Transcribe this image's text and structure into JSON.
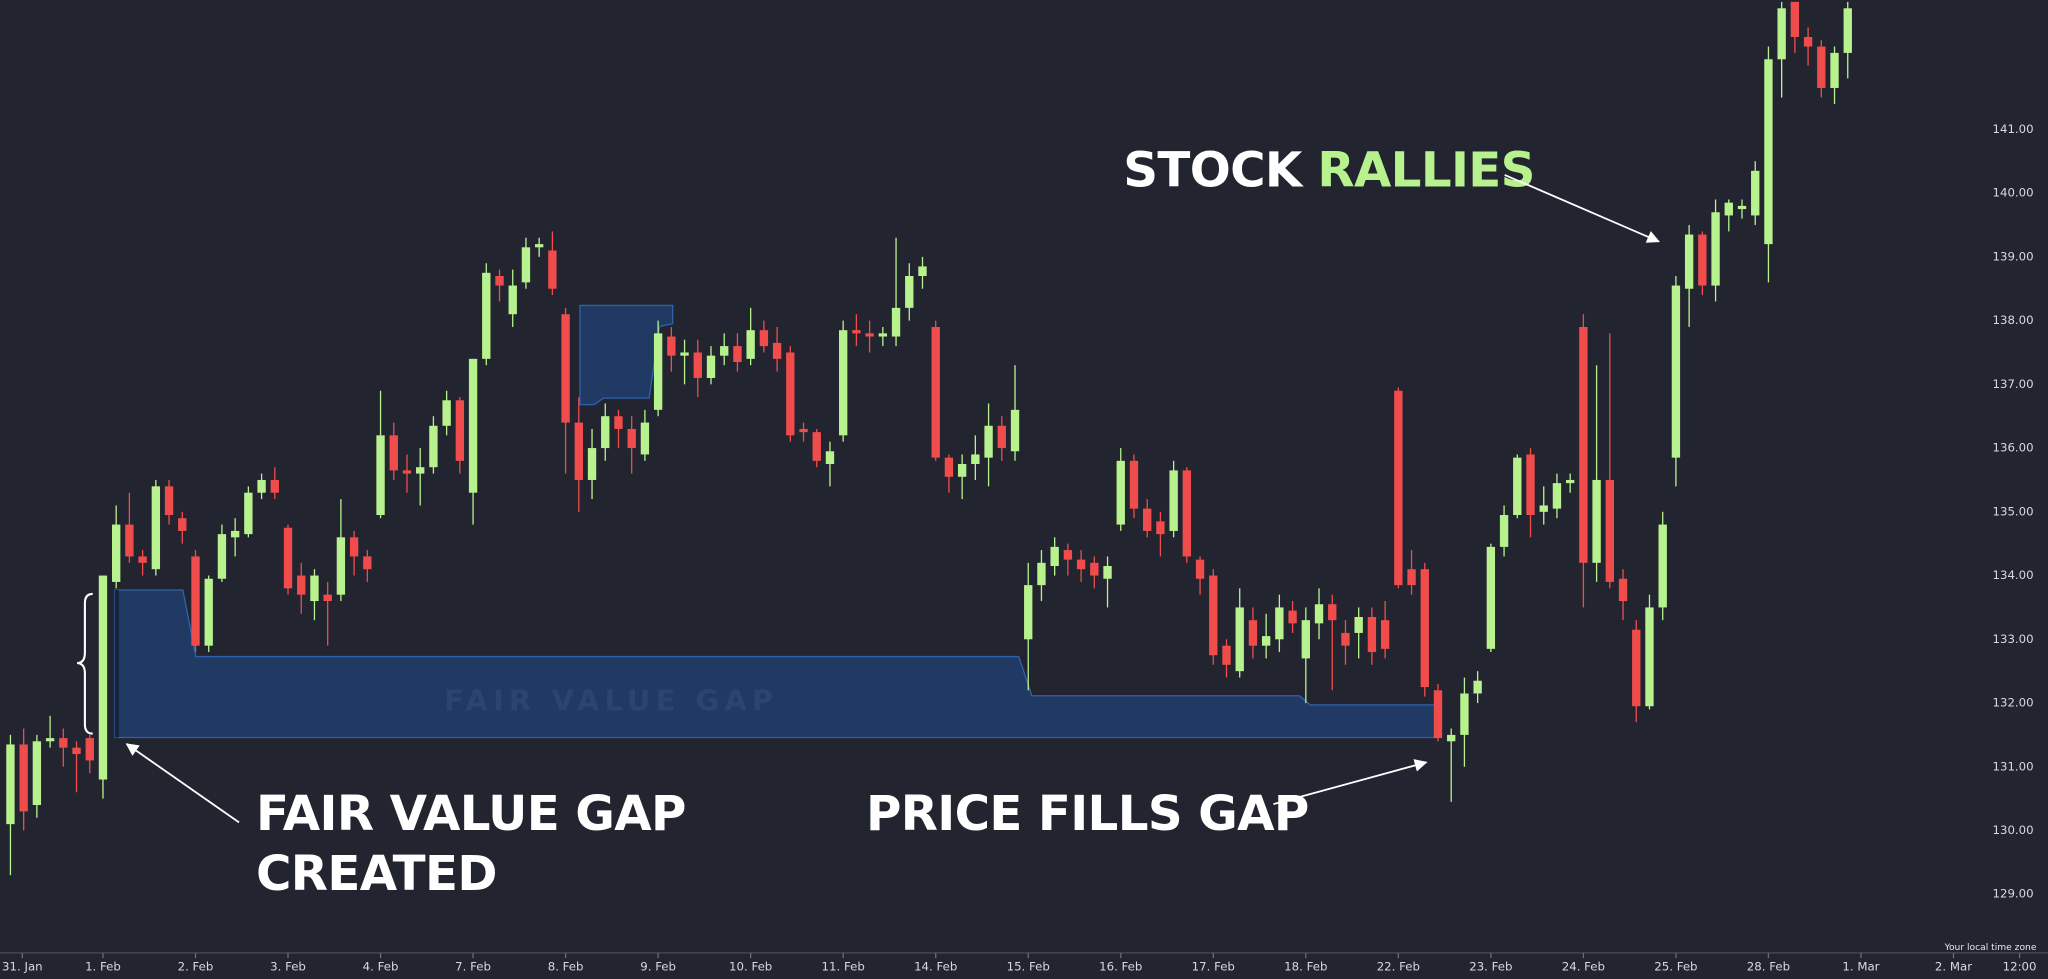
{
  "chart_data": {
    "type": "candlestick",
    "up_color": "#b8f28e",
    "down_color": "#f04c4c",
    "ylim": [
      128.08,
      143.03
    ],
    "yticks": [
      {
        "value": 129,
        "label": "129.00"
      },
      {
        "value": 130,
        "label": "130.00"
      },
      {
        "value": 131,
        "label": "131.00"
      },
      {
        "value": 132,
        "label": "132.00"
      },
      {
        "value": 133,
        "label": "133.00"
      },
      {
        "value": 134,
        "label": "134.00"
      },
      {
        "value": 135,
        "label": "135.00"
      },
      {
        "value": 136,
        "label": "136.00"
      },
      {
        "value": 137,
        "label": "137.00"
      },
      {
        "value": 138,
        "label": "138.00"
      },
      {
        "value": 139,
        "label": "139.00"
      },
      {
        "value": 140,
        "label": "140.00"
      },
      {
        "value": 141,
        "label": "141.00"
      }
    ],
    "xlim": [
      -0.79,
      154.15
    ],
    "xticks": [
      {
        "value": 0.9,
        "label": "31. Jan"
      },
      {
        "value": 7,
        "label": "1. Feb"
      },
      {
        "value": 14,
        "label": "2. Feb"
      },
      {
        "value": 21,
        "label": "3. Feb"
      },
      {
        "value": 28,
        "label": "4. Feb"
      },
      {
        "value": 35,
        "label": "7. Feb"
      },
      {
        "value": 42,
        "label": "8. Feb"
      },
      {
        "value": 49,
        "label": "9. Feb"
      },
      {
        "value": 56,
        "label": "10. Feb"
      },
      {
        "value": 63,
        "label": "11. Feb"
      },
      {
        "value": 70,
        "label": "14. Feb"
      },
      {
        "value": 77,
        "label": "15. Feb"
      },
      {
        "value": 84,
        "label": "16. Feb"
      },
      {
        "value": 91,
        "label": "17. Feb"
      },
      {
        "value": 98,
        "label": "18. Feb"
      },
      {
        "value": 105,
        "label": "22. Feb"
      },
      {
        "value": 112,
        "label": "23. Feb"
      },
      {
        "value": 119,
        "label": "24. Feb"
      },
      {
        "value": 126,
        "label": "25. Feb"
      },
      {
        "value": 133,
        "label": "28. Feb"
      },
      {
        "value": 140,
        "label": "1. Mar"
      },
      {
        "value": 147,
        "label": "2. Mar"
      },
      {
        "value": 152,
        "label": "12:00"
      }
    ],
    "open": [
      130.1,
      131.35,
      130.4,
      131.4,
      131.45,
      131.3,
      131.45,
      130.8,
      133.9,
      134.8,
      134.3,
      134.1,
      135.4,
      134.9,
      134.3,
      132.9,
      133.95,
      134.6,
      134.65,
      135.3,
      135.5,
      134.75,
      134.0,
      133.6,
      133.7,
      133.7,
      134.6,
      134.3,
      134.95,
      136.2,
      135.65,
      135.6,
      135.7,
      136.35,
      136.75,
      135.3,
      137.4,
      138.7,
      138.1,
      138.6,
      139.15,
      139.1,
      138.1,
      136.4,
      135.5,
      136.0,
      136.5,
      136.3,
      135.9,
      136.6,
      137.75,
      137.45,
      137.5,
      137.1,
      137.45,
      137.6,
      137.4,
      137.85,
      137.65,
      137.5,
      136.3,
      136.25,
      135.75,
      136.2,
      137.85,
      137.8,
      137.75,
      137.75,
      138.2,
      138.7,
      137.9,
      135.85,
      135.55,
      135.75,
      135.85,
      136.35,
      135.95,
      133.0,
      133.85,
      134.15,
      134.4,
      134.25,
      134.2,
      133.95,
      134.8,
      135.8,
      135.05,
      134.85,
      134.7,
      135.65,
      134.25,
      134.0,
      132.9,
      132.5,
      133.3,
      132.9,
      133.0,
      133.45,
      132.7,
      133.25,
      133.55,
      133.1,
      133.1,
      133.35,
      133.3,
      136.9,
      134.1,
      134.1,
      132.2,
      131.4,
      131.5,
      132.15,
      132.85,
      134.45,
      134.95,
      135.9,
      135.0,
      135.05,
      135.45,
      137.9,
      134.2,
      135.5,
      133.95,
      133.15,
      131.95,
      133.5,
      135.85,
      138.5,
      139.35,
      138.55,
      139.65,
      139.75,
      139.65,
      139.2,
      142.1,
      143.0,
      142.45,
      142.3,
      141.65,
      142.2
    ],
    "high": [
      131.5,
      131.6,
      131.5,
      131.8,
      131.6,
      131.4,
      131.5,
      134.0,
      135.1,
      135.3,
      134.4,
      135.5,
      135.5,
      135.0,
      134.4,
      134.0,
      134.8,
      134.9,
      135.4,
      135.6,
      135.7,
      134.8,
      134.2,
      134.1,
      133.9,
      135.2,
      134.7,
      134.4,
      136.9,
      136.4,
      135.9,
      136.0,
      136.5,
      136.9,
      136.8,
      137.4,
      138.9,
      138.8,
      138.8,
      139.3,
      139.3,
      139.4,
      138.2,
      136.8,
      136.3,
      136.7,
      136.6,
      136.5,
      136.6,
      138.0,
      137.9,
      137.7,
      137.7,
      137.6,
      137.8,
      137.8,
      138.2,
      138.0,
      137.9,
      137.6,
      136.4,
      136.3,
      136.1,
      138.0,
      138.1,
      138.0,
      137.9,
      139.3,
      138.9,
      139.0,
      138.0,
      135.9,
      135.9,
      136.2,
      136.7,
      136.5,
      137.3,
      134.2,
      134.4,
      134.6,
      134.5,
      134.4,
      134.3,
      134.3,
      136.0,
      135.9,
      135.2,
      135.0,
      135.8,
      135.7,
      134.3,
      134.1,
      133.0,
      133.8,
      133.5,
      133.4,
      133.7,
      133.6,
      133.5,
      133.8,
      133.7,
      133.3,
      133.5,
      133.5,
      133.6,
      136.95,
      134.4,
      134.2,
      132.3,
      131.6,
      132.4,
      132.5,
      134.5,
      135.1,
      135.9,
      136.0,
      135.4,
      135.6,
      135.6,
      138.1,
      137.3,
      137.8,
      134.1,
      133.3,
      133.7,
      135.0,
      138.7,
      139.5,
      139.4,
      139.9,
      139.9,
      139.9,
      140.5,
      142.3,
      143.0,
      143.0,
      142.6,
      142.4,
      142.3,
      143.0
    ],
    "low": [
      129.3,
      130.0,
      130.2,
      131.3,
      131.0,
      130.6,
      130.9,
      130.5,
      133.8,
      134.2,
      134.0,
      134.0,
      134.8,
      134.5,
      132.8,
      132.8,
      133.9,
      134.3,
      134.6,
      135.2,
      135.2,
      133.7,
      133.4,
      133.3,
      132.9,
      133.6,
      134.0,
      133.9,
      134.9,
      135.5,
      135.3,
      135.1,
      135.6,
      136.2,
      135.6,
      134.8,
      137.3,
      138.3,
      137.9,
      138.5,
      139.0,
      138.4,
      135.6,
      135.0,
      135.2,
      135.8,
      136.0,
      135.6,
      135.8,
      136.5,
      137.2,
      137.0,
      136.8,
      137.0,
      137.3,
      137.2,
      137.3,
      137.5,
      137.2,
      136.1,
      136.1,
      135.7,
      135.4,
      136.1,
      137.6,
      137.5,
      137.6,
      137.6,
      138.0,
      138.5,
      135.8,
      135.3,
      135.2,
      135.5,
      135.4,
      135.8,
      135.8,
      132.2,
      133.6,
      134.0,
      134.0,
      133.9,
      133.8,
      133.5,
      134.7,
      134.9,
      134.6,
      134.3,
      134.6,
      134.2,
      133.7,
      132.6,
      132.4,
      132.4,
      132.7,
      132.7,
      132.8,
      133.1,
      132.0,
      133.0,
      132.2,
      132.6,
      132.7,
      132.6,
      132.7,
      133.8,
      133.7,
      132.1,
      131.4,
      130.45,
      131.0,
      132.0,
      132.8,
      134.3,
      134.9,
      134.6,
      134.8,
      134.9,
      135.3,
      133.5,
      133.9,
      133.8,
      133.3,
      131.7,
      131.9,
      133.3,
      135.4,
      137.9,
      138.4,
      138.3,
      139.4,
      139.6,
      139.5,
      138.6,
      141.5,
      142.2,
      142.0,
      141.5,
      141.4,
      141.8
    ],
    "close": [
      131.35,
      130.3,
      131.4,
      131.45,
      131.3,
      131.2,
      131.1,
      134.0,
      134.8,
      134.3,
      134.2,
      135.4,
      134.95,
      134.7,
      132.9,
      133.95,
      134.65,
      134.7,
      135.3,
      135.5,
      135.3,
      133.8,
      133.7,
      134.0,
      133.6,
      134.6,
      134.3,
      134.1,
      136.2,
      135.65,
      135.6,
      135.7,
      136.35,
      136.75,
      135.8,
      137.4,
      138.75,
      138.55,
      138.55,
      139.15,
      139.2,
      138.5,
      136.4,
      135.5,
      136.0,
      136.5,
      136.3,
      136.0,
      136.4,
      137.8,
      137.45,
      137.5,
      137.1,
      137.45,
      137.6,
      137.35,
      137.85,
      137.6,
      137.4,
      136.2,
      136.25,
      135.8,
      135.95,
      137.85,
      137.8,
      137.75,
      137.8,
      138.2,
      138.7,
      138.85,
      135.85,
      135.55,
      135.75,
      135.9,
      136.35,
      136.0,
      136.6,
      133.85,
      134.2,
      134.45,
      134.25,
      134.1,
      134.0,
      134.15,
      135.8,
      135.05,
      134.7,
      134.65,
      135.65,
      134.3,
      133.95,
      132.75,
      132.6,
      133.5,
      132.9,
      133.05,
      133.5,
      133.25,
      133.3,
      133.55,
      133.3,
      132.9,
      133.35,
      132.8,
      132.85,
      133.85,
      133.85,
      132.25,
      131.45,
      131.5,
      132.15,
      132.35,
      134.45,
      134.95,
      135.85,
      134.95,
      135.1,
      135.45,
      135.5,
      134.2,
      135.5,
      133.9,
      133.6,
      131.95,
      133.5,
      134.8,
      138.55,
      139.35,
      138.55,
      139.7,
      139.85,
      139.8,
      140.35,
      142.1,
      142.9,
      142.45,
      142.3,
      141.65,
      142.2,
      142.9
    ],
    "annotations": [
      "STOCK",
      "RALLIES",
      "FAIR VALUE GAP",
      "CREATED",
      "PRICE FILLS GAP"
    ],
    "zone_label": "FAIR VALUE GAP",
    "timezone_note": "Your local time zone"
  }
}
